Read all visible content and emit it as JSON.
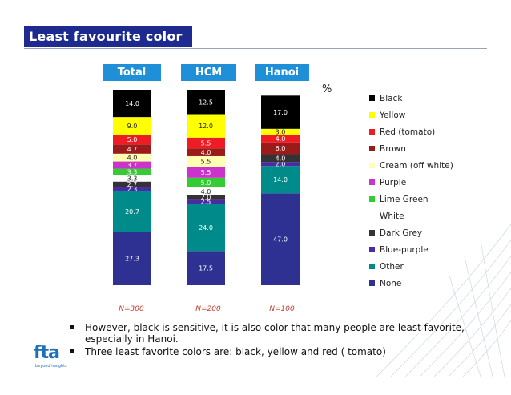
{
  "title": "Least favourite color",
  "unit": "%",
  "chart_data": {
    "type": "bar",
    "stacked": true,
    "categories": [
      "Total",
      "HCM",
      "Hanoi"
    ],
    "sample_sizes": [
      "N=300",
      "N=200",
      "N=100"
    ],
    "series": [
      {
        "name": "None",
        "color": "#2e3192",
        "values": [
          27.3,
          17.5,
          47.0
        ],
        "labels": [
          "27.3",
          "17.5",
          "47.0"
        ]
      },
      {
        "name": "Other",
        "color": "#008b8b",
        "values": [
          20.7,
          24.0,
          14.0
        ],
        "labels": [
          "20.7",
          "24.0",
          "14.0"
        ]
      },
      {
        "name": "Blue-purple",
        "color": "#4b2aa8",
        "values": [
          2.3,
          2.5,
          2.0
        ],
        "labels": [
          "2.3",
          "2.5",
          "2.0"
        ]
      },
      {
        "name": "Dark Grey",
        "color": "#333333",
        "values": [
          2.7,
          2.0,
          4.0
        ],
        "labels": [
          "2.7",
          "2.0",
          "4.0"
        ]
      },
      {
        "name": "White",
        "color": "#ffffff",
        "values": [
          3.3,
          4.0,
          0
        ],
        "labels": [
          "3.3",
          "4.0",
          ""
        ]
      },
      {
        "name": "Lime Green",
        "color": "#33cc33",
        "values": [
          3.3,
          5.0,
          0
        ],
        "labels": [
          "3.3",
          "5.0",
          ""
        ]
      },
      {
        "name": "Purple",
        "color": "#cc33cc",
        "values": [
          3.7,
          5.5,
          0
        ],
        "labels": [
          "3.7",
          "5.5",
          ""
        ]
      },
      {
        "name": "Cream (off white)",
        "color": "#ffffb3",
        "values": [
          4.0,
          5.5,
          0
        ],
        "labels": [
          "4.0",
          "5.5",
          ""
        ]
      },
      {
        "name": "Brown",
        "color": "#9b1b1b",
        "values": [
          4.7,
          4.0,
          6.0
        ],
        "labels": [
          "4.7",
          "4.0",
          "6.0"
        ]
      },
      {
        "name": "Red (tomato)",
        "color": "#ee1c24",
        "values": [
          5.0,
          5.5,
          4.0
        ],
        "labels": [
          "5.0",
          "5.5",
          "4.0"
        ]
      },
      {
        "name": "Yellow",
        "color": "#ffff00",
        "values": [
          9.0,
          12.0,
          3.0
        ],
        "labels": [
          "9.0",
          "12.0",
          "3.0"
        ]
      },
      {
        "name": "Black",
        "color": "#000000",
        "values": [
          14.0,
          12.5,
          17.0
        ],
        "labels": [
          "14.0",
          "12.5",
          "17.0"
        ]
      }
    ],
    "legend_order": [
      "Black",
      "Yellow",
      "Red (tomato)",
      "Brown",
      "Cream (off white)",
      "Purple",
      "Lime Green",
      "White",
      "Dark Grey",
      "Blue-purple",
      "Other",
      "None"
    ],
    "legend_placement": "right",
    "grid": false
  },
  "bullets": [
    "However, black is sensitive, it is also color that many people are least favorite, especially in Hanoi.",
    "Three least favorite colors are: black, yellow and red ( tomato)"
  ],
  "logo": {
    "text": "fta",
    "tagline": "beyond insights"
  }
}
